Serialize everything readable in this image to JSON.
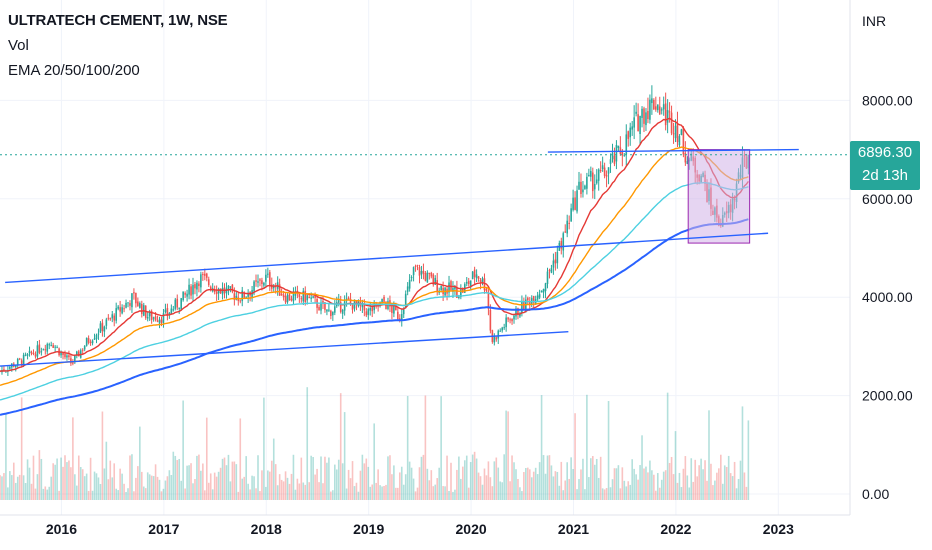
{
  "header": {
    "title": "ULTRATECH CEMENT, 1W, NSE",
    "volume_label": "Vol",
    "ema_label": "EMA 20/50/100/200"
  },
  "price_axis": {
    "currency": "INR",
    "ticks": [
      "8000.00",
      "6000.00",
      "4000.00",
      "2000.00",
      "0.00"
    ]
  },
  "time_axis": {
    "ticks": [
      "2016",
      "2017",
      "2018",
      "2019",
      "2020",
      "2021",
      "2022",
      "2023"
    ]
  },
  "last_price": {
    "value": "6896.30",
    "countdown": "2d 13h"
  },
  "colors": {
    "up": "#26a69a",
    "down": "#ef5350",
    "ema20": "#e53935",
    "ema50": "#ff9800",
    "ema100": "#4dd0e1",
    "ema200": "#2962ff",
    "trendline": "#2962ff",
    "box_fill": "#d1b3e8",
    "box_stroke": "#9c27b0",
    "last_price_line": "#26a69a"
  },
  "chart_data": {
    "type": "candlestick",
    "title": "ULTRATECH CEMENT, 1W, NSE",
    "ylabel": "INR",
    "ylim": [
      0,
      9000
    ],
    "x_range": [
      2015.4,
      2023.7
    ],
    "price_key_points": [
      {
        "x": 2015.4,
        "y": 2500
      },
      {
        "x": 2015.6,
        "y": 2700
      },
      {
        "x": 2015.9,
        "y": 3100
      },
      {
        "x": 2016.0,
        "y": 2850
      },
      {
        "x": 2016.1,
        "y": 2650
      },
      {
        "x": 2016.25,
        "y": 3100
      },
      {
        "x": 2016.5,
        "y": 3600
      },
      {
        "x": 2016.7,
        "y": 4000
      },
      {
        "x": 2016.85,
        "y": 3600
      },
      {
        "x": 2017.0,
        "y": 3600
      },
      {
        "x": 2017.2,
        "y": 4000
      },
      {
        "x": 2017.35,
        "y": 4400
      },
      {
        "x": 2017.5,
        "y": 4200
      },
      {
        "x": 2017.75,
        "y": 4000
      },
      {
        "x": 2017.95,
        "y": 4300
      },
      {
        "x": 2018.0,
        "y": 4400
      },
      {
        "x": 2018.2,
        "y": 4000
      },
      {
        "x": 2018.4,
        "y": 4000
      },
      {
        "x": 2018.6,
        "y": 3700
      },
      {
        "x": 2018.8,
        "y": 3900
      },
      {
        "x": 2019.0,
        "y": 3700
      },
      {
        "x": 2019.15,
        "y": 3900
      },
      {
        "x": 2019.3,
        "y": 3600
      },
      {
        "x": 2019.45,
        "y": 4600
      },
      {
        "x": 2019.7,
        "y": 4200
      },
      {
        "x": 2019.9,
        "y": 4100
      },
      {
        "x": 2020.05,
        "y": 4500
      },
      {
        "x": 2020.15,
        "y": 4200
      },
      {
        "x": 2020.2,
        "y": 3100
      },
      {
        "x": 2020.35,
        "y": 3500
      },
      {
        "x": 2020.5,
        "y": 3800
      },
      {
        "x": 2020.7,
        "y": 4200
      },
      {
        "x": 2020.9,
        "y": 5200
      },
      {
        "x": 2021.05,
        "y": 6200
      },
      {
        "x": 2021.3,
        "y": 6500
      },
      {
        "x": 2021.5,
        "y": 7100
      },
      {
        "x": 2021.65,
        "y": 7700
      },
      {
        "x": 2021.8,
        "y": 8000
      },
      {
        "x": 2021.9,
        "y": 7700
      },
      {
        "x": 2022.0,
        "y": 7500
      },
      {
        "x": 2022.12,
        "y": 6800
      },
      {
        "x": 2022.25,
        "y": 6500
      },
      {
        "x": 2022.35,
        "y": 5800
      },
      {
        "x": 2022.45,
        "y": 5500
      },
      {
        "x": 2022.55,
        "y": 5900
      },
      {
        "x": 2022.62,
        "y": 6500
      },
      {
        "x": 2022.72,
        "y": 6896.3
      }
    ],
    "ema_periods": [
      20,
      50,
      100,
      200
    ],
    "last_close": 6896.3,
    "annotations": {
      "upper_channel_line": [
        {
          "x": 2015.45,
          "y": 4300
        },
        {
          "x": 2022.9,
          "y": 5300
        }
      ],
      "lower_channel_line": [
        {
          "x": 2015.4,
          "y": 2600
        },
        {
          "x": 2020.95,
          "y": 3300
        }
      ],
      "resistance_line": [
        {
          "x": 2020.75,
          "y": 6950
        },
        {
          "x": 2023.2,
          "y": 7000
        }
      ],
      "highlight_box": {
        "x0": 2022.12,
        "x1": 2022.72,
        "y0": 5100,
        "y1": 7000
      }
    }
  }
}
